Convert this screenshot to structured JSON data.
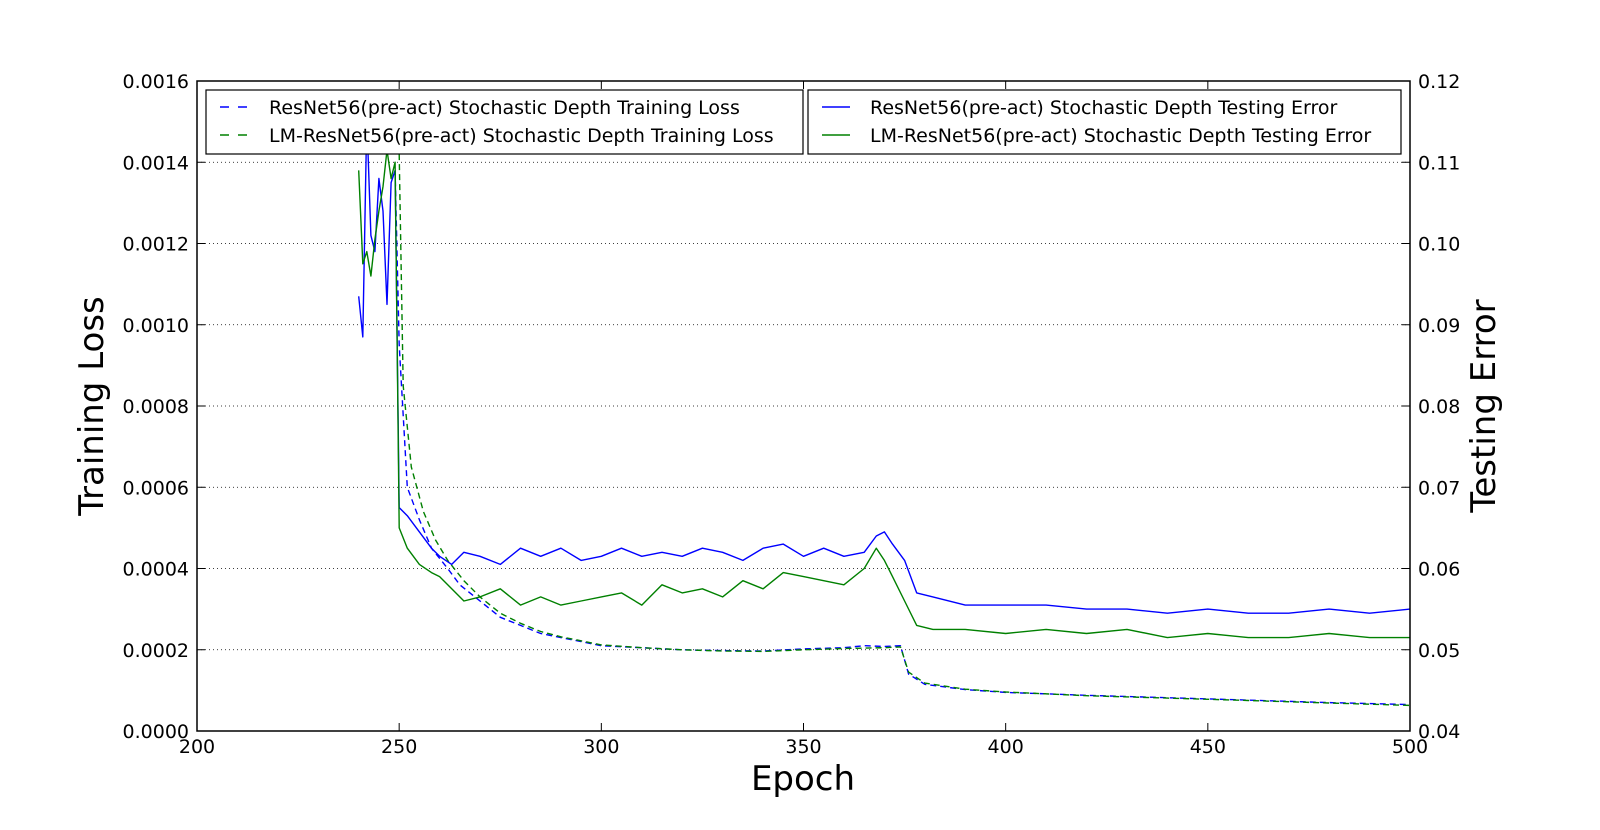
{
  "chart_data": {
    "type": "line",
    "title": "",
    "xlabel": "Epoch",
    "ylabel": "Training Loss",
    "y2label": "Testing Error",
    "xlim": [
      200,
      500
    ],
    "ylim": [
      0.0,
      0.0016
    ],
    "y2lim": [
      0.04,
      0.12
    ],
    "xticks": [
      "200",
      "250",
      "300",
      "350",
      "400",
      "450",
      "500"
    ],
    "yticks": [
      "0.0000",
      "0.0002",
      "0.0004",
      "0.0006",
      "0.0008",
      "0.0010",
      "0.0012",
      "0.0014",
      "0.0016"
    ],
    "y2ticks": [
      "0.04",
      "0.05",
      "0.06",
      "0.07",
      "0.08",
      "0.09",
      "0.10",
      "0.11",
      "0.12"
    ],
    "grid": "horizontal dotted",
    "legend": [
      {
        "position": "top-left",
        "entries": [
          0,
          1
        ]
      },
      {
        "position": "top-right",
        "entries": [
          2,
          3
        ]
      }
    ],
    "colors": {
      "blue": "#0000ff",
      "green": "#008000"
    },
    "series": [
      {
        "name": "ResNet56(pre-act) Stochastic Depth Training Loss",
        "axis": "left",
        "style": "dashed",
        "color": "#0000ff",
        "points": [
          [
            249,
            0.00138
          ],
          [
            250,
            0.00095
          ],
          [
            252,
            0.0006
          ],
          [
            255,
            0.00052
          ],
          [
            258,
            0.00045
          ],
          [
            262,
            0.0004
          ],
          [
            265,
            0.00036
          ],
          [
            270,
            0.00032
          ],
          [
            275,
            0.00028
          ],
          [
            280,
            0.00026
          ],
          [
            285,
            0.00024
          ],
          [
            290,
            0.00023
          ],
          [
            295,
            0.00022
          ],
          [
            300,
            0.00021
          ],
          [
            310,
            0.000205
          ],
          [
            320,
            0.0002
          ],
          [
            330,
            0.000198
          ],
          [
            340,
            0.000197
          ],
          [
            350,
            0.000202
          ],
          [
            360,
            0.000205
          ],
          [
            365,
            0.00021
          ],
          [
            370,
            0.000208
          ],
          [
            374,
            0.00021
          ],
          [
            376,
            0.00014
          ],
          [
            380,
            0.000115
          ],
          [
            390,
            0.000102
          ],
          [
            400,
            9.5e-05
          ],
          [
            420,
            8.8e-05
          ],
          [
            440,
            8.2e-05
          ],
          [
            460,
            7.6e-05
          ],
          [
            480,
            7e-05
          ],
          [
            500,
            6.5e-05
          ]
        ]
      },
      {
        "name": "LM-ResNet56(pre-act) Stochastic Depth Training Loss",
        "axis": "left",
        "style": "dashed",
        "color": "#008000",
        "points": [
          [
            250,
            0.00142
          ],
          [
            251,
            0.00085
          ],
          [
            253,
            0.00065
          ],
          [
            256,
            0.00054
          ],
          [
            259,
            0.00047
          ],
          [
            262,
            0.00042
          ],
          [
            266,
            0.00037
          ],
          [
            270,
            0.00033
          ],
          [
            275,
            0.00029
          ],
          [
            280,
            0.000265
          ],
          [
            285,
            0.000245
          ],
          [
            290,
            0.000232
          ],
          [
            295,
            0.000222
          ],
          [
            300,
            0.000212
          ],
          [
            310,
            0.000205
          ],
          [
            320,
            0.0002
          ],
          [
            330,
            0.000197
          ],
          [
            340,
            0.000196
          ],
          [
            350,
            0.0002
          ],
          [
            360,
            0.000203
          ],
          [
            370,
            0.000205
          ],
          [
            374,
            0.000207
          ],
          [
            376,
            0.000145
          ],
          [
            380,
            0.000118
          ],
          [
            390,
            0.000103
          ],
          [
            400,
            9.6e-05
          ],
          [
            420,
            8.7e-05
          ],
          [
            440,
            8.1e-05
          ],
          [
            460,
            7.5e-05
          ],
          [
            480,
            6.9e-05
          ],
          [
            500,
            6.3e-05
          ]
        ]
      },
      {
        "name": "ResNet56(pre-act) Stochastic Depth Testing Error",
        "axis": "right",
        "style": "solid",
        "color": "#0000ff",
        "points": [
          [
            240,
            0.0935
          ],
          [
            241,
            0.0885
          ],
          [
            242,
            0.1155
          ],
          [
            243,
            0.101
          ],
          [
            244,
            0.099
          ],
          [
            245,
            0.108
          ],
          [
            246,
            0.104
          ],
          [
            247,
            0.0925
          ],
          [
            248,
            0.1075
          ],
          [
            249,
            0.109
          ],
          [
            250,
            0.0675
          ],
          [
            252,
            0.0665
          ],
          [
            255,
            0.0645
          ],
          [
            258,
            0.0625
          ],
          [
            260,
            0.0615
          ],
          [
            263,
            0.0605
          ],
          [
            266,
            0.062
          ],
          [
            270,
            0.0615
          ],
          [
            275,
            0.0605
          ],
          [
            280,
            0.0625
          ],
          [
            285,
            0.0615
          ],
          [
            290,
            0.0625
          ],
          [
            295,
            0.061
          ],
          [
            300,
            0.0615
          ],
          [
            305,
            0.0625
          ],
          [
            310,
            0.0615
          ],
          [
            315,
            0.062
          ],
          [
            320,
            0.0615
          ],
          [
            325,
            0.0625
          ],
          [
            330,
            0.062
          ],
          [
            335,
            0.061
          ],
          [
            340,
            0.0625
          ],
          [
            345,
            0.063
          ],
          [
            350,
            0.0615
          ],
          [
            355,
            0.0625
          ],
          [
            360,
            0.0615
          ],
          [
            365,
            0.062
          ],
          [
            368,
            0.064
          ],
          [
            370,
            0.0645
          ],
          [
            372,
            0.063
          ],
          [
            375,
            0.061
          ],
          [
            378,
            0.057
          ],
          [
            382,
            0.0565
          ],
          [
            390,
            0.0555
          ],
          [
            400,
            0.0555
          ],
          [
            410,
            0.0555
          ],
          [
            420,
            0.055
          ],
          [
            430,
            0.055
          ],
          [
            440,
            0.0545
          ],
          [
            450,
            0.055
          ],
          [
            460,
            0.0545
          ],
          [
            470,
            0.0545
          ],
          [
            480,
            0.055
          ],
          [
            490,
            0.0545
          ],
          [
            500,
            0.055
          ]
        ]
      },
      {
        "name": "LM-ResNet56(pre-act) Stochastic Depth Testing Error",
        "axis": "right",
        "style": "solid",
        "color": "#008000",
        "points": [
          [
            240,
            0.109
          ],
          [
            241,
            0.0975
          ],
          [
            242,
            0.099
          ],
          [
            243,
            0.096
          ],
          [
            244,
            0.1005
          ],
          [
            245,
            0.104
          ],
          [
            246,
            0.107
          ],
          [
            247,
            0.1115
          ],
          [
            248,
            0.108
          ],
          [
            249,
            0.11
          ],
          [
            250,
            0.065
          ],
          [
            252,
            0.0625
          ],
          [
            255,
            0.0605
          ],
          [
            258,
            0.0595
          ],
          [
            260,
            0.059
          ],
          [
            263,
            0.0575
          ],
          [
            266,
            0.056
          ],
          [
            270,
            0.0565
          ],
          [
            275,
            0.0575
          ],
          [
            280,
            0.0555
          ],
          [
            285,
            0.0565
          ],
          [
            290,
            0.0555
          ],
          [
            295,
            0.056
          ],
          [
            300,
            0.0565
          ],
          [
            305,
            0.057
          ],
          [
            310,
            0.0555
          ],
          [
            315,
            0.058
          ],
          [
            320,
            0.057
          ],
          [
            325,
            0.0575
          ],
          [
            330,
            0.0565
          ],
          [
            335,
            0.0585
          ],
          [
            340,
            0.0575
          ],
          [
            345,
            0.0595
          ],
          [
            350,
            0.059
          ],
          [
            355,
            0.0585
          ],
          [
            360,
            0.058
          ],
          [
            365,
            0.06
          ],
          [
            368,
            0.0625
          ],
          [
            370,
            0.061
          ],
          [
            372,
            0.059
          ],
          [
            375,
            0.056
          ],
          [
            378,
            0.053
          ],
          [
            382,
            0.0525
          ],
          [
            390,
            0.0525
          ],
          [
            400,
            0.052
          ],
          [
            410,
            0.0525
          ],
          [
            420,
            0.052
          ],
          [
            430,
            0.0525
          ],
          [
            440,
            0.0515
          ],
          [
            450,
            0.052
          ],
          [
            460,
            0.0515
          ],
          [
            470,
            0.0515
          ],
          [
            480,
            0.052
          ],
          [
            490,
            0.0515
          ],
          [
            500,
            0.0515
          ]
        ]
      }
    ]
  }
}
